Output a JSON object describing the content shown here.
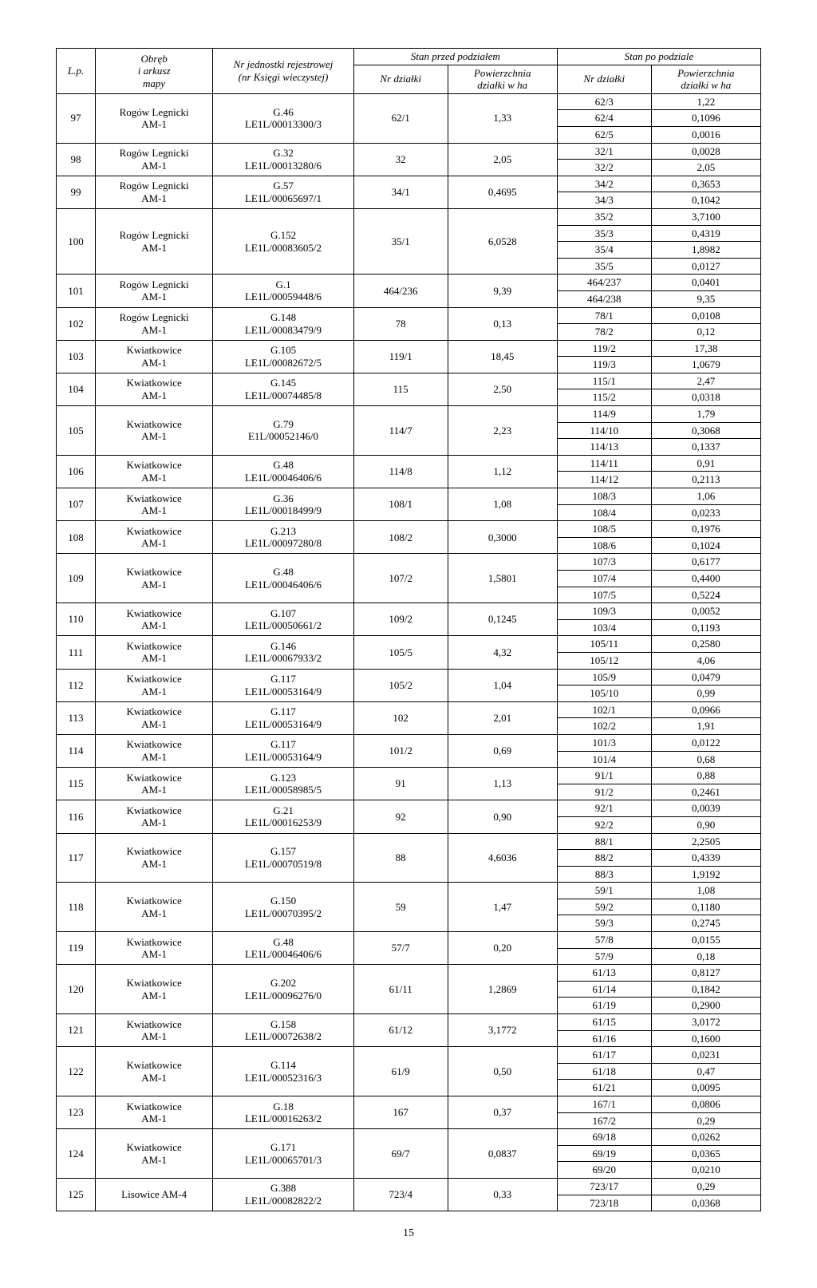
{
  "headers": {
    "lp": "L.p.",
    "obreb": "Obręb\ni arkusz\nmapy",
    "jednostka": "Nr jednostki rejestrowej\n(nr Księgi wieczystej)",
    "stan_przed": "Stan przed podziałem",
    "stan_po": "Stan po podziale",
    "nr_dzialki": "Nr działki",
    "powierzchnia": "Powierzchnia\ndziałki w ha"
  },
  "page_number": "15",
  "rows": [
    {
      "lp": "97",
      "obreb": "Rogów Legnicki\nAM-1",
      "jed": "G.46\nLE1L/00013300/3",
      "nr1": "62/1",
      "pow1": "1,33",
      "sub": [
        [
          "62/3",
          "1,22"
        ],
        [
          "62/4",
          "0,1096"
        ],
        [
          "62/5",
          "0,0016"
        ]
      ]
    },
    {
      "lp": "98",
      "obreb": "Rogów Legnicki\nAM-1",
      "jed": "G.32\nLE1L/00013280/6",
      "nr1": "32",
      "pow1": "2,05",
      "sub": [
        [
          "32/1",
          "0,0028"
        ],
        [
          "32/2",
          "2,05"
        ]
      ]
    },
    {
      "lp": "99",
      "obreb": "Rogów Legnicki\nAM-1",
      "jed": "G.57\nLE1L/00065697/1",
      "nr1": "34/1",
      "pow1": "0,4695",
      "sub": [
        [
          "34/2",
          "0,3653"
        ],
        [
          "34/3",
          "0,1042"
        ]
      ]
    },
    {
      "lp": "100",
      "obreb": "Rogów Legnicki\nAM-1",
      "jed": "G.152\nLE1L/00083605/2",
      "nr1": "35/1",
      "pow1": "6,0528",
      "sub": [
        [
          "35/2",
          "3,7100"
        ],
        [
          "35/3",
          "0,4319"
        ],
        [
          "35/4",
          "1,8982"
        ],
        [
          "35/5",
          "0,0127"
        ]
      ]
    },
    {
      "lp": "101",
      "obreb": "Rogów Legnicki\nAM-1",
      "jed": "G.1\nLE1L/00059448/6",
      "nr1": "464/236",
      "pow1": "9,39",
      "sub": [
        [
          "464/237",
          "0,0401"
        ],
        [
          "464/238",
          "9,35"
        ]
      ]
    },
    {
      "lp": "102",
      "obreb": "Rogów Legnicki\nAM-1",
      "jed": "G.148\nLE1L/00083479/9",
      "nr1": "78",
      "pow1": "0,13",
      "sub": [
        [
          "78/1",
          "0,0108"
        ],
        [
          "78/2",
          "0,12"
        ]
      ]
    },
    {
      "lp": "103",
      "obreb": "Kwiatkowice\nAM-1",
      "jed": "G.105\nLE1L/00082672/5",
      "nr1": "119/1",
      "pow1": "18,45",
      "sub": [
        [
          "119/2",
          "17,38"
        ],
        [
          "119/3",
          "1,0679"
        ]
      ]
    },
    {
      "lp": "104",
      "obreb": "Kwiatkowice\nAM-1",
      "jed": "G.145\nLE1L/00074485/8",
      "nr1": "115",
      "pow1": "2,50",
      "sub": [
        [
          "115/1",
          "2,47"
        ],
        [
          "115/2",
          "0,0318"
        ]
      ]
    },
    {
      "lp": "105",
      "obreb": "Kwiatkowice\nAM-1",
      "jed": "G.79\nE1L/00052146/0",
      "nr1": "114/7",
      "pow1": "2,23",
      "sub": [
        [
          "114/9",
          "1,79"
        ],
        [
          "114/10",
          "0,3068"
        ],
        [
          "114/13",
          "0,1337"
        ]
      ]
    },
    {
      "lp": "106",
      "obreb": "Kwiatkowice\nAM-1",
      "jed": "G.48\nLE1L/00046406/6",
      "nr1": "114/8",
      "pow1": "1,12",
      "sub": [
        [
          "114/11",
          "0,91"
        ],
        [
          "114/12",
          "0,2113"
        ]
      ]
    },
    {
      "lp": "107",
      "obreb": "Kwiatkowice\nAM-1",
      "jed": "G.36\nLE1L/00018499/9",
      "nr1": "108/1",
      "pow1": "1,08",
      "sub": [
        [
          "108/3",
          "1,06"
        ],
        [
          "108/4",
          "0,0233"
        ]
      ]
    },
    {
      "lp": "108",
      "obreb": "Kwiatkowice\nAM-1",
      "jed": "G.213\nLE1L/00097280/8",
      "nr1": "108/2",
      "pow1": "0,3000",
      "sub": [
        [
          "108/5",
          "0,1976"
        ],
        [
          "108/6",
          "0,1024"
        ]
      ]
    },
    {
      "lp": "109",
      "obreb": "Kwiatkowice\nAM-1",
      "jed": "G.48\nLE1L/00046406/6",
      "nr1": "107/2",
      "pow1": "1,5801",
      "sub": [
        [
          "107/3",
          "0,6177"
        ],
        [
          "107/4",
          "0,4400"
        ],
        [
          "107/5",
          "0,5224"
        ]
      ]
    },
    {
      "lp": "110",
      "obreb": "Kwiatkowice\nAM-1",
      "jed": "G.107\nLE1L/00050661/2",
      "nr1": "109/2",
      "pow1": "0,1245",
      "sub": [
        [
          "109/3",
          "0,0052"
        ],
        [
          "103/4",
          "0,1193"
        ]
      ]
    },
    {
      "lp": "111",
      "obreb": "Kwiatkowice\nAM-1",
      "jed": "G.146\nLE1L/00067933/2",
      "nr1": "105/5",
      "pow1": "4,32",
      "sub": [
        [
          "105/11",
          "0,2580"
        ],
        [
          "105/12",
          "4,06"
        ]
      ]
    },
    {
      "lp": "112",
      "obreb": "Kwiatkowice\nAM-1",
      "jed": "G.117\nLE1L/00053164/9",
      "nr1": "105/2",
      "pow1": "1,04",
      "sub": [
        [
          "105/9",
          "0,0479"
        ],
        [
          "105/10",
          "0,99"
        ]
      ]
    },
    {
      "lp": "113",
      "obreb": "Kwiatkowice\nAM-1",
      "jed": "G.117\nLE1L/00053164/9",
      "nr1": "102",
      "pow1": "2,01",
      "sub": [
        [
          "102/1",
          "0,0966"
        ],
        [
          "102/2",
          "1,91"
        ]
      ]
    },
    {
      "lp": "114",
      "obreb": "Kwiatkowice\nAM-1",
      "jed": "G.117\nLE1L/00053164/9",
      "nr1": "101/2",
      "pow1": "0,69",
      "sub": [
        [
          "101/3",
          "0,0122"
        ],
        [
          "101/4",
          "0,68"
        ]
      ]
    },
    {
      "lp": "115",
      "obreb": "Kwiatkowice\nAM-1",
      "jed": "G.123\nLE1L/00058985/5",
      "nr1": "91",
      "pow1": "1,13",
      "sub": [
        [
          "91/1",
          "0,88"
        ],
        [
          "91/2",
          "0,2461"
        ]
      ]
    },
    {
      "lp": "116",
      "obreb": "Kwiatkowice\nAM-1",
      "jed": "G.21\nLE1L/00016253/9",
      "nr1": "92",
      "pow1": "0,90",
      "sub": [
        [
          "92/1",
          "0,0039"
        ],
        [
          "92/2",
          "0,90"
        ]
      ]
    },
    {
      "lp": "117",
      "obreb": "Kwiatkowice\nAM-1",
      "jed": "G.157\nLE1L/00070519/8",
      "nr1": "88",
      "pow1": "4,6036",
      "sub": [
        [
          "88/1",
          "2,2505"
        ],
        [
          "88/2",
          "0,4339"
        ],
        [
          "88/3",
          "1,9192"
        ]
      ]
    },
    {
      "lp": "118",
      "obreb": "Kwiatkowice\nAM-1",
      "jed": "G.150\nLE1L/00070395/2",
      "nr1": "59",
      "pow1": "1,47",
      "sub": [
        [
          "59/1",
          "1,08"
        ],
        [
          "59/2",
          "0,1180"
        ],
        [
          "59/3",
          "0,2745"
        ]
      ]
    },
    {
      "lp": "119",
      "obreb": "Kwiatkowice\nAM-1",
      "jed": "G.48\nLE1L/00046406/6",
      "nr1": "57/7",
      "pow1": "0,20",
      "sub": [
        [
          "57/8",
          "0,0155"
        ],
        [
          "57/9",
          "0,18"
        ]
      ]
    },
    {
      "lp": "120",
      "obreb": "Kwiatkowice\nAM-1",
      "jed": "G.202\nLE1L/00096276/0",
      "nr1": "61/11",
      "pow1": "1,2869",
      "sub": [
        [
          "61/13",
          "0,8127"
        ],
        [
          "61/14",
          "0,1842"
        ],
        [
          "61/19",
          "0,2900"
        ]
      ]
    },
    {
      "lp": "121",
      "obreb": "Kwiatkowice\nAM-1",
      "jed": "G.158\nLE1L/00072638/2",
      "nr1": "61/12",
      "pow1": "3,1772",
      "sub": [
        [
          "61/15",
          "3,0172"
        ],
        [
          "61/16",
          "0,1600"
        ]
      ]
    },
    {
      "lp": "122",
      "obreb": "Kwiatkowice\nAM-1",
      "jed": "G.114\nLE1L/00052316/3",
      "nr1": "61/9",
      "pow1": "0,50",
      "sub": [
        [
          "61/17",
          "0,0231"
        ],
        [
          "61/18",
          "0,47"
        ],
        [
          "61/21",
          "0,0095"
        ]
      ]
    },
    {
      "lp": "123",
      "obreb": "Kwiatkowice\nAM-1",
      "jed": "G.18\nLE1L/00016263/2",
      "nr1": "167",
      "pow1": "0,37",
      "sub": [
        [
          "167/1",
          "0,0806"
        ],
        [
          "167/2",
          "0,29"
        ]
      ]
    },
    {
      "lp": "124",
      "obreb": "Kwiatkowice\nAM-1",
      "jed": "G.171\nLE1L/00065701/3",
      "nr1": "69/7",
      "pow1": "0,0837",
      "sub": [
        [
          "69/18",
          "0,0262"
        ],
        [
          "69/19",
          "0,0365"
        ],
        [
          "69/20",
          "0,0210"
        ]
      ]
    },
    {
      "lp": "125",
      "obreb": "Lisowice AM-4",
      "jed": "G.388\nLE1L/00082822/2",
      "nr1": "723/4",
      "pow1": "0,33",
      "sub": [
        [
          "723/17",
          "0,29"
        ],
        [
          "723/18",
          "0,0368"
        ]
      ]
    }
  ]
}
